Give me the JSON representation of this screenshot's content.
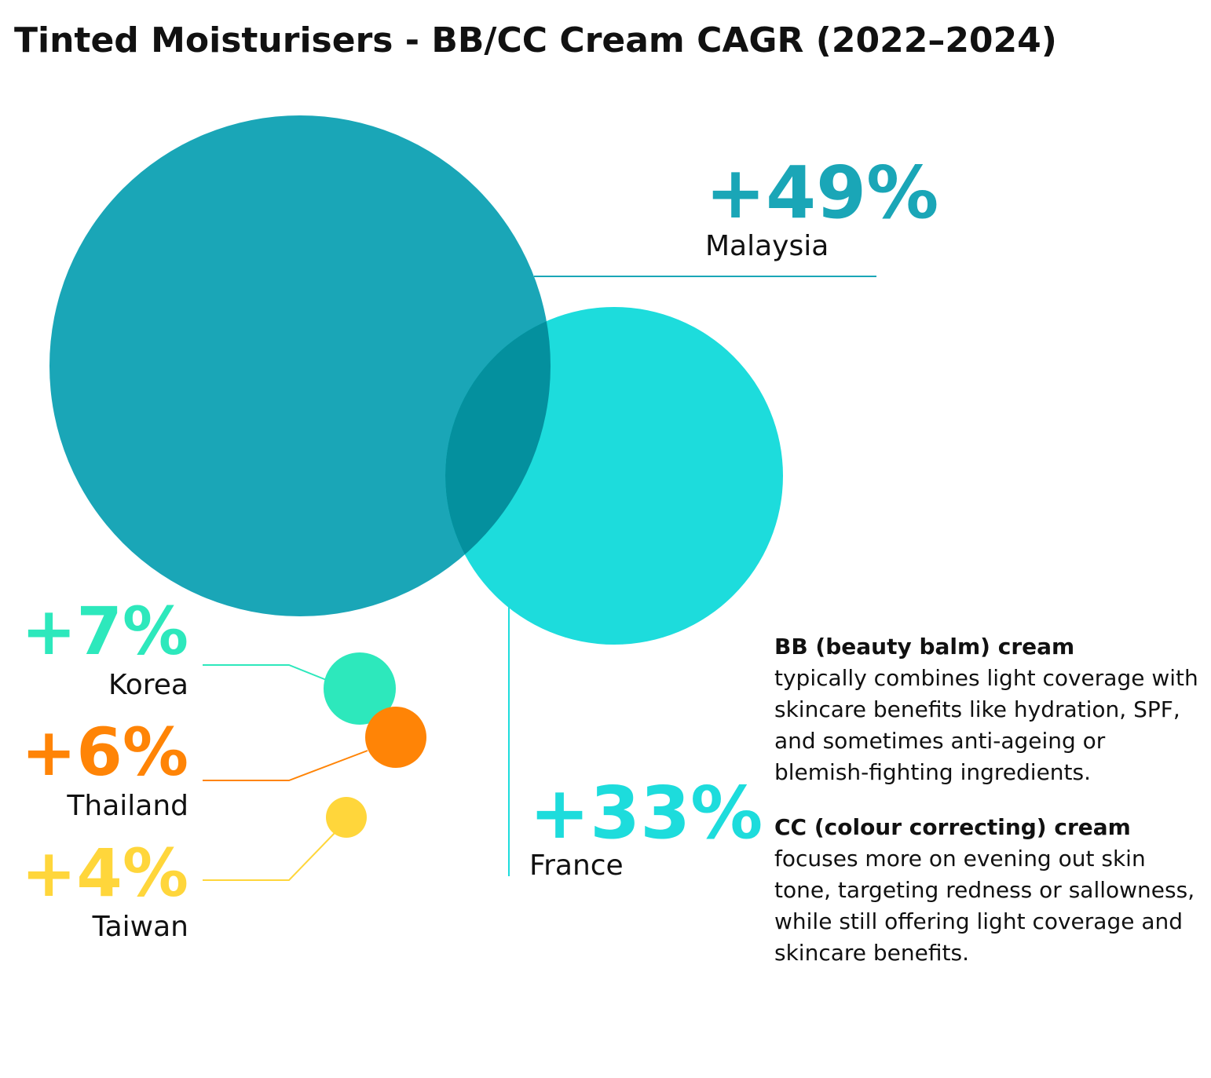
{
  "chart_data": {
    "type": "bubble",
    "title": "Tinted Moisturisers - BB/CC Cream CAGR (2022–2024)",
    "unit": "%",
    "series": [
      {
        "country": "Malaysia",
        "label": "+49%",
        "value": 49,
        "color": "#1AA6B7"
      },
      {
        "country": "France",
        "label": "+33%",
        "value": 33,
        "color": "#1DDCDC"
      },
      {
        "country": "Korea",
        "label": "+7%",
        "value": 7,
        "color": "#2DE8BC"
      },
      {
        "country": "Thailand",
        "label": "+6%",
        "value": 6,
        "color": "#FF8406"
      },
      {
        "country": "Taiwan",
        "label": "+4%",
        "value": 4,
        "color": "#FFD63B"
      }
    ],
    "overlap_color": "#04909E"
  },
  "notes": [
    {
      "heading": "BB (beauty balm) cream",
      "body": "typically combines light coverage with skincare benefits like hydration, SPF, and sometimes anti-ageing or blemish-fighting ingredients."
    },
    {
      "heading": "CC (colour correcting) cream",
      "body": "focuses more on evening out skin tone, targeting redness or sallowness, while still offering light coverage and skincare benefits."
    }
  ]
}
